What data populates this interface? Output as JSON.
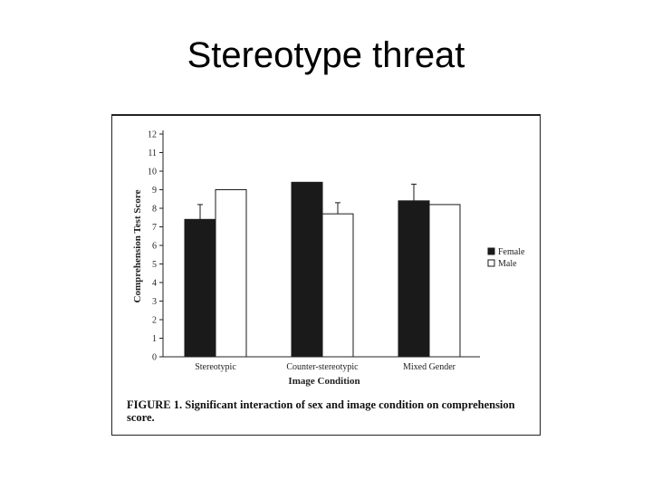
{
  "slide": {
    "title": "Stereotype threat"
  },
  "figure": {
    "caption": "FIGURE 1. Significant interaction of sex and image condition on comprehension score."
  },
  "chart_data": {
    "type": "bar",
    "title": "",
    "xlabel": "Image Condition",
    "ylabel": "Comprehension Test Score",
    "ylim": [
      0,
      12
    ],
    "yticks": [
      "0",
      "1",
      "2",
      "3",
      "4",
      "5",
      "6",
      "7",
      "8",
      "9",
      "10",
      "11",
      "12"
    ],
    "categories": [
      "Stereotypic",
      "Counter-stereotypic",
      "Mixed Gender"
    ],
    "series": [
      {
        "name": "Female",
        "values": [
          7.4,
          9.4,
          8.4
        ],
        "error": [
          0.8,
          0,
          0.9
        ],
        "color": "#1a1a1a"
      },
      {
        "name": "Male",
        "values": [
          9.0,
          7.7,
          8.2
        ],
        "error": [
          0,
          0.6,
          0
        ],
        "color": "#ffffff"
      }
    ],
    "grid": false,
    "legend": "right"
  }
}
